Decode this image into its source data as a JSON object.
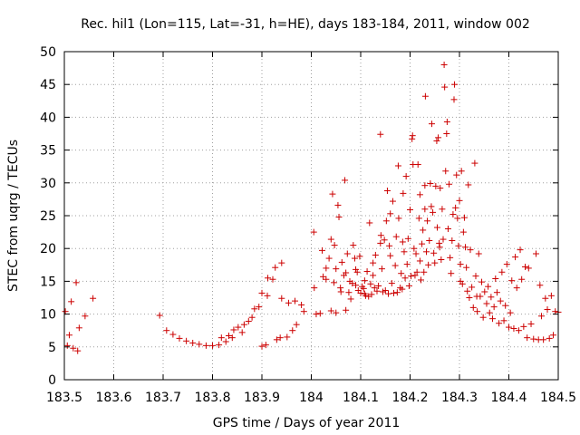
{
  "chart_data": {
    "type": "scatter",
    "title": "Rec. hil1 (Lon=115, Lat=-31, h=HE), days 183-184, 2011, window 002",
    "xlabel": "GPS time / Days of year 2011",
    "ylabel": "STEC from uqrg / TECUs",
    "xlim": [
      183.5,
      184.5
    ],
    "ylim": [
      0,
      50
    ],
    "xticks": [
      183.5,
      183.6,
      183.7,
      183.8,
      183.9,
      184.0,
      184.1,
      184.2,
      184.3,
      184.4,
      184.5
    ],
    "xtick_labels": [
      "183.5",
      "183.6",
      "183.7",
      "183.8",
      "183.9",
      "184",
      "184.1",
      "184.2",
      "184.3",
      "184.4",
      "184.5"
    ],
    "yticks": [
      0,
      5,
      10,
      15,
      20,
      25,
      30,
      35,
      40,
      45,
      50
    ],
    "ytick_labels": [
      "0",
      "5",
      "10",
      "15",
      "20",
      "25",
      "30",
      "35",
      "40",
      "45",
      "50"
    ],
    "grid": true,
    "marker": "plus",
    "color": "#cc0000",
    "points": [
      [
        183.502,
        10.4
      ],
      [
        183.506,
        5.2
      ],
      [
        183.51,
        6.8
      ],
      [
        183.514,
        11.9
      ],
      [
        183.518,
        4.8
      ],
      [
        183.524,
        14.8
      ],
      [
        183.527,
        4.4
      ],
      [
        183.53,
        7.9
      ],
      [
        183.542,
        9.7
      ],
      [
        183.558,
        12.4
      ],
      [
        183.693,
        9.8
      ],
      [
        183.707,
        7.5
      ],
      [
        183.72,
        6.9
      ],
      [
        183.733,
        6.3
      ],
      [
        183.747,
        5.9
      ],
      [
        183.76,
        5.6
      ],
      [
        183.773,
        5.4
      ],
      [
        183.787,
        5.2
      ],
      [
        183.8,
        5.2
      ],
      [
        183.813,
        5.3
      ],
      [
        183.818,
        6.4
      ],
      [
        183.827,
        5.8
      ],
      [
        183.833,
        6.7
      ],
      [
        183.84,
        6.4
      ],
      [
        183.843,
        7.6
      ],
      [
        183.852,
        8.0
      ],
      [
        183.86,
        7.2
      ],
      [
        183.864,
        8.4
      ],
      [
        183.873,
        8.9
      ],
      [
        183.88,
        9.5
      ],
      [
        183.885,
        10.8
      ],
      [
        183.894,
        11.1
      ],
      [
        183.9,
        13.2
      ],
      [
        183.9,
        5.1
      ],
      [
        183.908,
        5.3
      ],
      [
        183.911,
        12.8
      ],
      [
        183.912,
        15.5
      ],
      [
        183.922,
        15.3
      ],
      [
        183.927,
        17.1
      ],
      [
        183.93,
        6.1
      ],
      [
        183.937,
        6.4
      ],
      [
        183.94,
        17.8
      ],
      [
        183.94,
        12.4
      ],
      [
        183.951,
        6.5
      ],
      [
        183.954,
        11.7
      ],
      [
        183.962,
        7.5
      ],
      [
        183.967,
        12.0
      ],
      [
        183.97,
        8.4
      ],
      [
        183.98,
        11.4
      ],
      [
        183.985,
        10.4
      ],
      [
        184.005,
        22.5
      ],
      [
        184.006,
        14.0
      ],
      [
        184.01,
        10.0
      ],
      [
        184.018,
        10.1
      ],
      [
        184.022,
        19.7
      ],
      [
        184.024,
        15.7
      ],
      [
        184.03,
        15.3
      ],
      [
        184.036,
        18.5
      ],
      [
        184.04,
        21.4
      ],
      [
        184.04,
        10.5
      ],
      [
        184.043,
        28.3
      ],
      [
        184.046,
        14.8
      ],
      [
        184.05,
        10.2
      ],
      [
        184.05,
        16.9
      ],
      [
        184.054,
        26.6
      ],
      [
        184.056,
        24.8
      ],
      [
        184.059,
        14.0
      ],
      [
        184.062,
        17.9
      ],
      [
        184.066,
        15.9
      ],
      [
        184.068,
        30.4
      ],
      [
        184.07,
        10.6
      ],
      [
        184.073,
        19.2
      ],
      [
        184.076,
        13.3
      ],
      [
        184.078,
        15.0
      ],
      [
        184.08,
        12.3
      ],
      [
        184.083,
        14.7
      ],
      [
        184.085,
        20.5
      ],
      [
        184.088,
        18.5
      ],
      [
        184.09,
        14.4
      ],
      [
        184.093,
        16.4
      ],
      [
        184.095,
        13.6
      ],
      [
        184.098,
        18.8
      ],
      [
        184.1,
        13.2
      ],
      [
        184.103,
        14.2
      ],
      [
        184.106,
        13.9
      ],
      [
        184.108,
        15.1
      ],
      [
        184.11,
        12.8
      ],
      [
        184.113,
        16.5
      ],
      [
        184.116,
        12.7
      ],
      [
        184.118,
        23.9
      ],
      [
        184.12,
        14.6
      ],
      [
        184.122,
        13.0
      ],
      [
        184.125,
        17.8
      ],
      [
        184.128,
        14.0
      ],
      [
        184.13,
        19.0
      ],
      [
        184.133,
        13.5
      ],
      [
        184.136,
        14.3
      ],
      [
        184.14,
        37.4
      ],
      [
        184.141,
        22.0
      ],
      [
        184.143,
        16.9
      ],
      [
        184.145,
        13.4
      ],
      [
        184.148,
        21.3
      ],
      [
        184.15,
        13.6
      ],
      [
        184.152,
        24.2
      ],
      [
        184.154,
        28.8
      ],
      [
        184.156,
        13.1
      ],
      [
        184.158,
        20.4
      ],
      [
        184.16,
        18.9
      ],
      [
        184.163,
        14.7
      ],
      [
        184.165,
        27.2
      ],
      [
        184.167,
        13.2
      ],
      [
        184.17,
        17.4
      ],
      [
        184.172,
        21.8
      ],
      [
        184.174,
        13.3
      ],
      [
        184.176,
        32.6
      ],
      [
        184.177,
        24.6
      ],
      [
        184.18,
        14.0
      ],
      [
        184.182,
        16.2
      ],
      [
        184.184,
        13.8
      ],
      [
        184.186,
        28.4
      ],
      [
        184.188,
        19.5
      ],
      [
        184.19,
        15.5
      ],
      [
        184.192,
        31.0
      ],
      [
        184.194,
        17.6
      ],
      [
        184.196,
        21.5
      ],
      [
        184.198,
        14.3
      ],
      [
        184.2,
        25.9
      ],
      [
        184.202,
        15.8
      ],
      [
        184.204,
        36.7
      ],
      [
        184.205,
        37.2
      ],
      [
        184.206,
        32.8
      ],
      [
        184.208,
        20.0
      ],
      [
        184.21,
        15.9
      ],
      [
        184.212,
        19.2
      ],
      [
        184.214,
        16.4
      ],
      [
        184.216,
        32.8
      ],
      [
        184.218,
        24.6
      ],
      [
        184.22,
        18.1
      ],
      [
        184.222,
        15.2
      ],
      [
        184.224,
        20.7
      ],
      [
        184.226,
        22.8
      ],
      [
        184.228,
        16.4
      ],
      [
        184.23,
        29.6
      ],
      [
        184.231,
        43.2
      ],
      [
        184.233,
        19.5
      ],
      [
        184.235,
        24.2
      ],
      [
        184.237,
        17.5
      ],
      [
        184.239,
        21.2
      ],
      [
        184.241,
        29.9
      ],
      [
        184.243,
        26.4
      ],
      [
        184.244,
        39.0
      ],
      [
        184.246,
        25.5
      ],
      [
        184.248,
        19.3
      ],
      [
        184.25,
        17.8
      ],
      [
        184.252,
        29.5
      ],
      [
        184.254,
        36.4
      ],
      [
        184.255,
        23.2
      ],
      [
        184.257,
        36.9
      ],
      [
        184.259,
        20.8
      ],
      [
        184.261,
        29.2
      ],
      [
        184.263,
        18.3
      ],
      [
        184.265,
        26.0
      ],
      [
        184.267,
        21.4
      ],
      [
        184.269,
        48.0
      ],
      [
        184.27,
        44.6
      ],
      [
        184.272,
        31.8
      ],
      [
        184.274,
        37.5
      ],
      [
        184.275,
        39.3
      ],
      [
        184.277,
        23.0
      ],
      [
        184.279,
        29.8
      ],
      [
        184.281,
        18.6
      ],
      [
        184.283,
        16.2
      ],
      [
        184.285,
        21.2
      ],
      [
        184.287,
        25.2
      ],
      [
        184.289,
        42.7
      ],
      [
        184.29,
        45.0
      ],
      [
        184.292,
        26.2
      ],
      [
        184.294,
        31.2
      ],
      [
        184.296,
        24.6
      ],
      [
        184.298,
        20.4
      ],
      [
        184.3,
        27.3
      ],
      [
        184.302,
        15.0
      ],
      [
        184.304,
        31.8
      ],
      [
        184.306,
        14.6
      ],
      [
        184.308,
        22.5
      ],
      [
        184.31,
        24.7
      ],
      [
        184.312,
        20.2
      ],
      [
        184.314,
        17.1
      ],
      [
        184.316,
        13.5
      ],
      [
        184.318,
        29.7
      ],
      [
        184.32,
        12.5
      ],
      [
        184.322,
        19.8
      ],
      [
        184.325,
        14.1
      ],
      [
        184.328,
        11.0
      ],
      [
        184.331,
        33.0
      ],
      [
        184.333,
        15.8
      ],
      [
        184.336,
        10.4
      ],
      [
        184.339,
        19.2
      ],
      [
        184.342,
        12.7
      ],
      [
        184.345,
        14.9
      ],
      [
        184.348,
        9.5
      ],
      [
        184.351,
        13.4
      ],
      [
        184.355,
        11.6
      ],
      [
        184.358,
        14.2
      ],
      [
        184.361,
        10.2
      ],
      [
        184.364,
        12.6
      ],
      [
        184.367,
        9.3
      ],
      [
        184.37,
        11.1
      ],
      [
        184.373,
        15.4
      ],
      [
        184.376,
        13.3
      ],
      [
        184.38,
        8.6
      ],
      [
        184.383,
        12.0
      ],
      [
        184.386,
        16.4
      ],
      [
        184.39,
        9.0
      ],
      [
        184.393,
        11.3
      ],
      [
        184.396,
        17.6
      ],
      [
        184.4,
        8.0
      ],
      [
        184.403,
        10.2
      ],
      [
        184.406,
        15.1
      ],
      [
        184.41,
        7.8
      ],
      [
        184.413,
        18.7
      ],
      [
        184.416,
        14.0
      ],
      [
        184.42,
        7.5
      ],
      [
        184.423,
        19.8
      ],
      [
        184.426,
        15.3
      ],
      [
        184.43,
        8.1
      ],
      [
        184.433,
        17.2
      ],
      [
        184.437,
        6.4
      ],
      [
        184.44,
        17.0
      ],
      [
        184.445,
        8.5
      ],
      [
        184.45,
        6.2
      ],
      [
        184.455,
        19.2
      ],
      [
        184.46,
        6.1
      ],
      [
        184.463,
        14.4
      ],
      [
        184.466,
        9.7
      ],
      [
        184.47,
        6.1
      ],
      [
        184.474,
        12.4
      ],
      [
        184.478,
        10.7
      ],
      [
        184.482,
        6.3
      ],
      [
        184.486,
        12.8
      ],
      [
        184.49,
        6.8
      ],
      [
        184.494,
        10.4
      ],
      [
        184.5,
        10.3
      ],
      [
        184.335,
        12.7
      ],
      [
        184.302,
        17.6
      ],
      [
        184.26,
        20.2
      ],
      [
        184.23,
        26.0
      ],
      [
        184.22,
        28.2
      ],
      [
        184.185,
        21.0
      ],
      [
        184.16,
        25.3
      ],
      [
        184.14,
        20.8
      ],
      [
        184.125,
        15.9
      ],
      [
        184.108,
        13.1
      ],
      [
        184.09,
        16.8
      ],
      [
        184.07,
        16.3
      ],
      [
        184.06,
        13.4
      ],
      [
        184.047,
        20.5
      ],
      [
        184.03,
        17.0
      ]
    ]
  }
}
